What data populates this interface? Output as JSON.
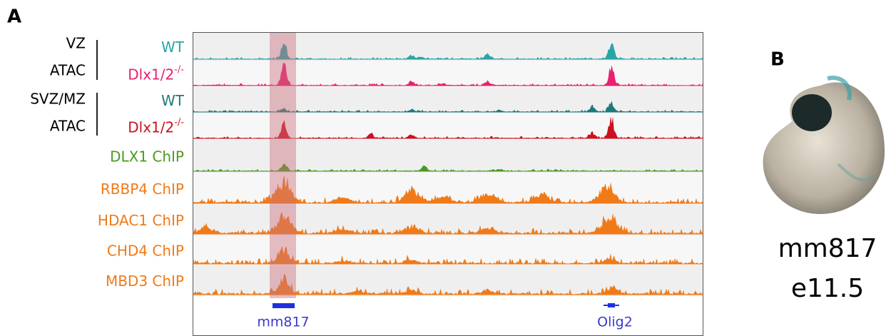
{
  "panel_a": {
    "label": "A",
    "groups": [
      {
        "lines": [
          "VZ",
          "ATAC"
        ]
      },
      {
        "lines": [
          "SVZ/MZ",
          "ATAC"
        ]
      }
    ],
    "tracks": [
      {
        "name": "WT"
      },
      {
        "name": "Dlx1/2",
        "superscript": "-/-"
      },
      {
        "name": "WT"
      },
      {
        "name": "Dlx1/2",
        "superscript": "-/-"
      },
      {
        "name": "DLX1 ChIP"
      },
      {
        "name": "RBBP4 ChIP"
      },
      {
        "name": "HDAC1 ChIP"
      },
      {
        "name": "CHD4 ChIP"
      },
      {
        "name": "MBD3 ChIP"
      }
    ],
    "features": [
      "mm817",
      "Olig2"
    ]
  },
  "panel_b": {
    "label": "B",
    "caption": [
      "mm817",
      "e11.5"
    ]
  }
}
